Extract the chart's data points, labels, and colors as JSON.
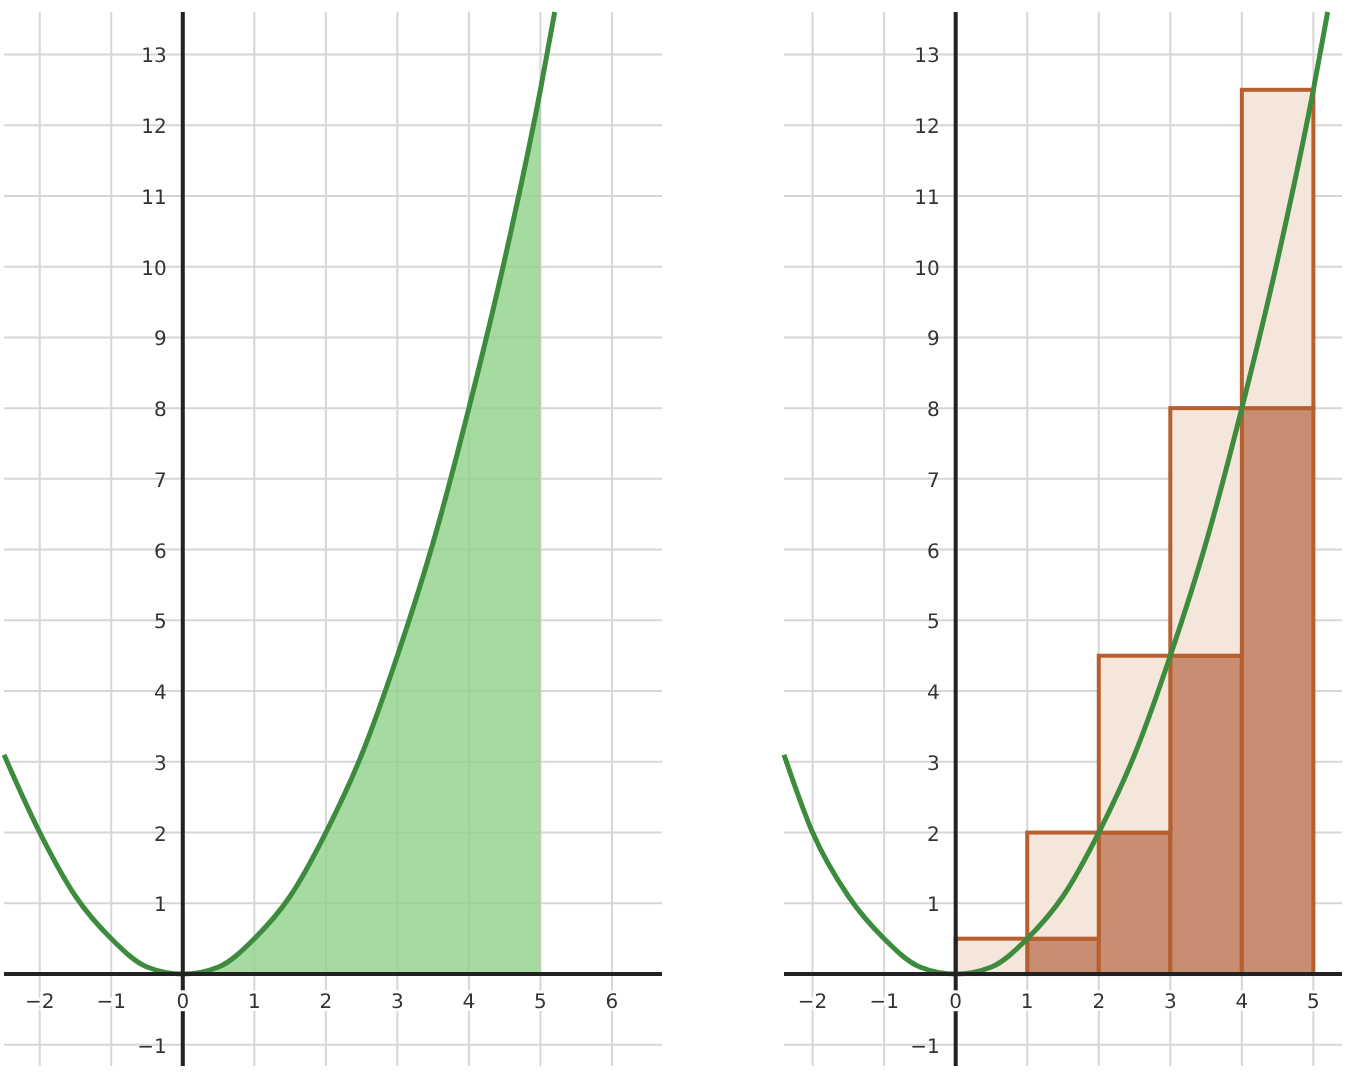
{
  "chart_data": [
    {
      "type": "area",
      "xlim": [
        -2.5,
        6.7
      ],
      "ylim": [
        -1.3,
        13.6
      ],
      "xticks": [
        -2,
        -1,
        0,
        1,
        2,
        3,
        4,
        5,
        6
      ],
      "yticks": [
        -1,
        1,
        2,
        3,
        4,
        5,
        6,
        7,
        8,
        9,
        10,
        11,
        12,
        13
      ],
      "grid": true,
      "series": [
        {
          "color": "#8fd18a",
          "x": [
            0,
            0.5,
            1,
            1.5,
            2,
            2.5,
            3,
            3.5,
            4,
            4.5,
            5
          ],
          "values": [
            0,
            0.1,
            0.5,
            1.1,
            2,
            3.1,
            4.5,
            6.1,
            8,
            10.1,
            12.5
          ]
        },
        {
          "type": "line",
          "color": "#3d8b3d",
          "x": [
            -2.5,
            -2,
            -1.5,
            -1,
            -0.5,
            0,
            0.5,
            1,
            1.5,
            2,
            2.5,
            3,
            3.5,
            4,
            4.5,
            5,
            5.2
          ],
          "values": [
            3.1,
            2,
            1.1,
            0.5,
            0.1,
            0,
            0.1,
            0.5,
            1.1,
            2,
            3.1,
            4.5,
            6.1,
            8,
            10.1,
            12.5,
            13.6
          ]
        }
      ]
    },
    {
      "type": "bar",
      "stacked": true,
      "xlim": [
        -2.4,
        5.4
      ],
      "ylim": [
        -1.3,
        13.6
      ],
      "xticks": [
        -2,
        -1,
        0,
        1,
        2,
        3,
        4,
        5
      ],
      "yticks": [
        -1,
        1,
        2,
        3,
        4,
        5,
        6,
        7,
        8,
        9,
        10,
        11,
        12,
        13
      ],
      "grid": true,
      "series": [
        {
          "color": "#c98e72",
          "x": [
            0.5,
            1.5,
            2.5,
            3.5,
            4.5
          ],
          "values": [
            0,
            0.5,
            2,
            4.5,
            8
          ]
        },
        {
          "color": "#f5e6dc",
          "x": [
            0.5,
            1.5,
            2.5,
            3.5,
            4.5
          ],
          "values": [
            0.5,
            1.5,
            2.5,
            3.5,
            4.5
          ]
        },
        {
          "type": "line",
          "color": "#3d8b3d",
          "x": [
            -2.4,
            -2,
            -1.5,
            -1,
            -0.5,
            0,
            0.5,
            1,
            1.5,
            2,
            2.5,
            3,
            3.5,
            4,
            4.5,
            5,
            5.2
          ],
          "values": [
            3.1,
            2,
            1.1,
            0.5,
            0.1,
            0,
            0.1,
            0.5,
            1.1,
            2,
            3.1,
            4.5,
            6.1,
            8,
            10.1,
            12.5,
            13.6
          ]
        }
      ]
    }
  ]
}
